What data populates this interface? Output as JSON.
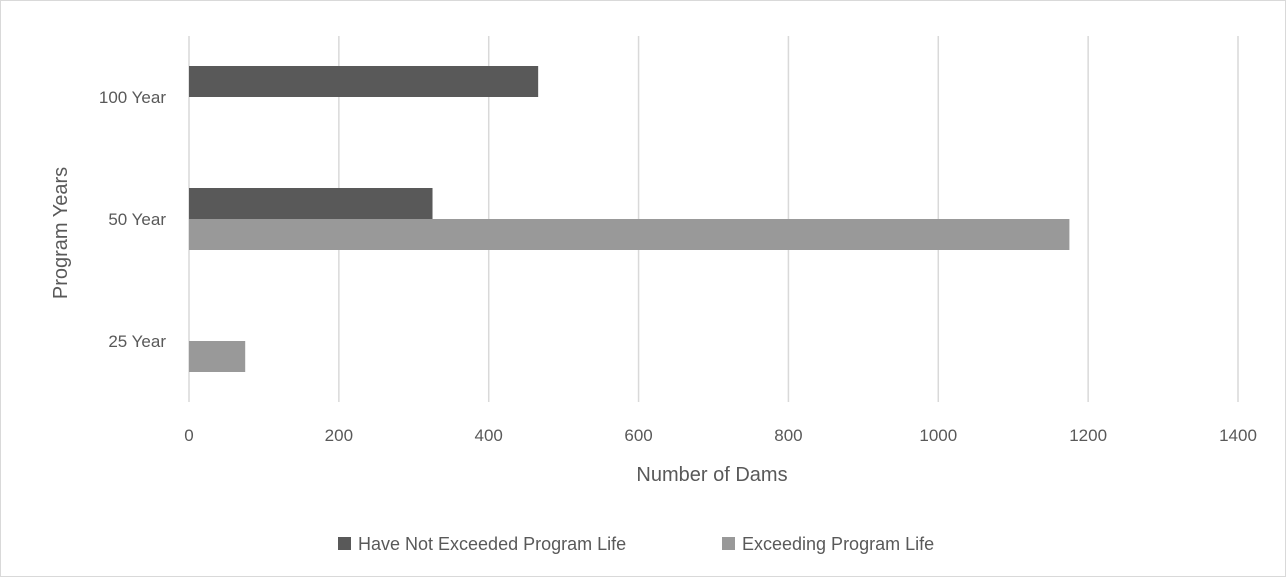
{
  "chart_data": {
    "type": "bar",
    "orientation": "horizontal",
    "title": "",
    "xlabel": "Number of Dams",
    "ylabel": "Program Years",
    "categories": [
      "100 Year",
      "50 Year",
      "25 Year"
    ],
    "series": [
      {
        "name": "Have Not Exceeded Program Life",
        "color": "#595959",
        "values": [
          466,
          325,
          0
        ]
      },
      {
        "name": "Exceeding Program Life",
        "color": "#999999",
        "values": [
          0,
          1175,
          75
        ]
      }
    ],
    "xlim": [
      0,
      1400
    ],
    "xticks": [
      "0",
      "200",
      "400",
      "600",
      "800",
      "1000",
      "1200",
      "1400"
    ],
    "xtick_values": [
      0,
      200,
      400,
      600,
      800,
      1000,
      1200,
      1400
    ],
    "grid": "vertical",
    "gridline_color": "#d9d9d9",
    "legend_position": "bottom"
  }
}
